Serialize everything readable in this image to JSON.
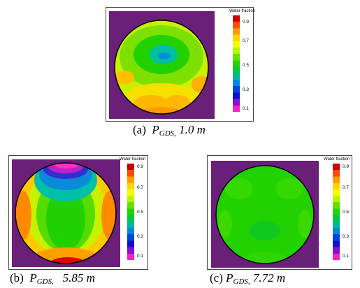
{
  "legend": {
    "title": "Water fraction",
    "ticks": [
      "0.9",
      "0.7",
      "0.5",
      "0.3",
      "0.1"
    ],
    "colors": [
      "#cc0000",
      "#ff4a00",
      "#ff9a00",
      "#ffd200",
      "#f2ff00",
      "#b8f500",
      "#66e000",
      "#21d400",
      "#00c840",
      "#00b5a0",
      "#0088d8",
      "#0044e0",
      "#1010c8",
      "#8a10d0",
      "#ff20c0"
    ]
  },
  "panels": [
    {
      "letter": "(a)",
      "symbol": "P",
      "subscript": "GDS,",
      "value": "1.0 m"
    },
    {
      "letter": "(b)",
      "symbol": "P",
      "subscript": "GDS,",
      "value": "5.85 m"
    },
    {
      "letter": "(c)",
      "symbol": "P",
      "subscript": "GDS,",
      "value": "7.72 m"
    }
  ]
}
